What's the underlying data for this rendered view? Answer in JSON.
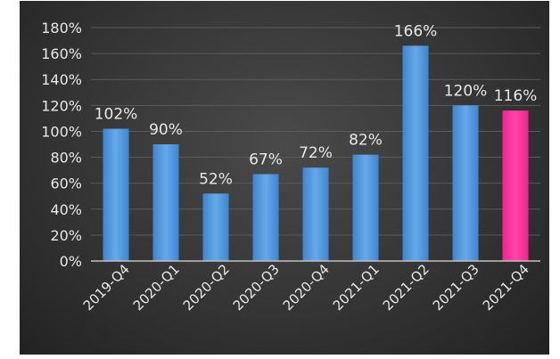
{
  "chart_data": {
    "type": "bar",
    "title": "",
    "xlabel": "",
    "ylabel": "",
    "categories": [
      "2019-Q4",
      "2020-Q1",
      "2020-Q2",
      "2020-Q3",
      "2020-Q4",
      "2021-Q1",
      "2021-Q2",
      "2021-Q3",
      "2021-Q4"
    ],
    "values": [
      102,
      90,
      52,
      67,
      72,
      82,
      166,
      120,
      116
    ],
    "data_labels": [
      "102%",
      "90%",
      "52%",
      "67%",
      "72%",
      "82%",
      "166%",
      "120%",
      "116%"
    ],
    "ylim": [
      0,
      180
    ],
    "y_ticks": [
      0,
      20,
      40,
      60,
      80,
      100,
      120,
      140,
      160,
      180
    ],
    "y_tick_labels": [
      "0%",
      "20%",
      "40%",
      "60%",
      "80%",
      "100%",
      "120%",
      "140%",
      "160%",
      "180%"
    ],
    "grid": true,
    "legend": "none",
    "colors": {
      "bar": "#4f95d9",
      "bar_highlight": "#ff2f9b",
      "gridline": "#5a5a5a",
      "axis": "#bfbfbf",
      "text": "#e8e8e8"
    },
    "highlight_index": 8
  }
}
